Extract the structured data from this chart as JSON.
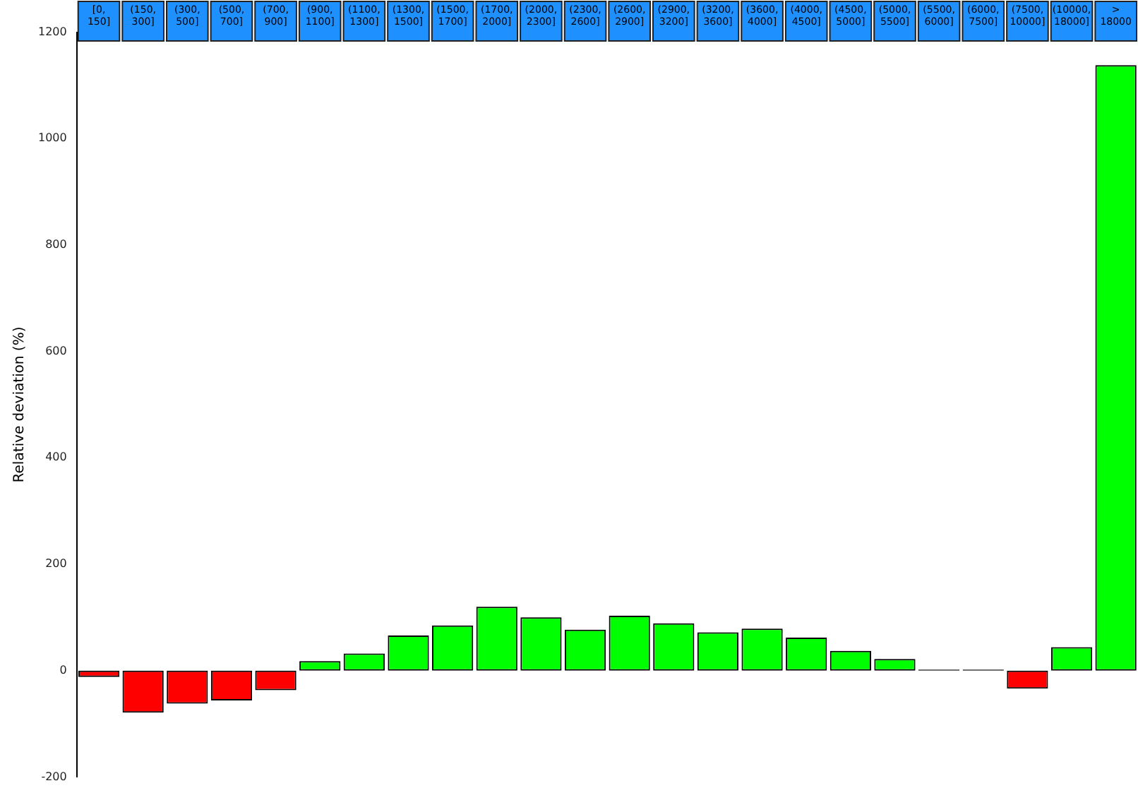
{
  "chart_data": {
    "type": "bar",
    "ylabel": "Relative deviation (%)",
    "categories": [
      "[0, 150]",
      "(150, 300]",
      "(300, 500]",
      "(500, 700]",
      "(700, 900]",
      "(900, 1100]",
      "(1100, 1300]",
      "(1300, 1500]",
      "(1500, 1700]",
      "(1700, 2000]",
      "(2000, 2300]",
      "(2300, 2600]",
      "(2600, 2900]",
      "(2900, 3200]",
      "(3200, 3600]",
      "(3600, 4000]",
      "(4000, 4500]",
      "(4500, 5000]",
      "(5000, 5500]",
      "(5500, 6000]",
      "(6000, 7500]",
      "(7500, 10000]",
      "(10000, 18000]",
      "> 18000"
    ],
    "values": [
      -12,
      -79,
      -62,
      -56,
      -37,
      18,
      32,
      66,
      85,
      120,
      100,
      77,
      103,
      89,
      72,
      79,
      62,
      37,
      22,
      2,
      2,
      -34,
      44,
      1138
    ],
    "colors": [
      "#ff0000",
      "#ff0000",
      "#ff0000",
      "#ff0000",
      "#ff0000",
      "#00ff00",
      "#00ff00",
      "#00ff00",
      "#00ff00",
      "#00ff00",
      "#00ff00",
      "#00ff00",
      "#00ff00",
      "#00ff00",
      "#00ff00",
      "#00ff00",
      "#00ff00",
      "#00ff00",
      "#00ff00",
      "#000000",
      "#000000",
      "#ff0000",
      "#00ff00",
      "#00ff00"
    ],
    "ylim": [
      -200,
      1200
    ],
    "yticks": [
      -200,
      0,
      200,
      400,
      600,
      800,
      1000,
      1200
    ],
    "grid": false,
    "legend": false
  }
}
